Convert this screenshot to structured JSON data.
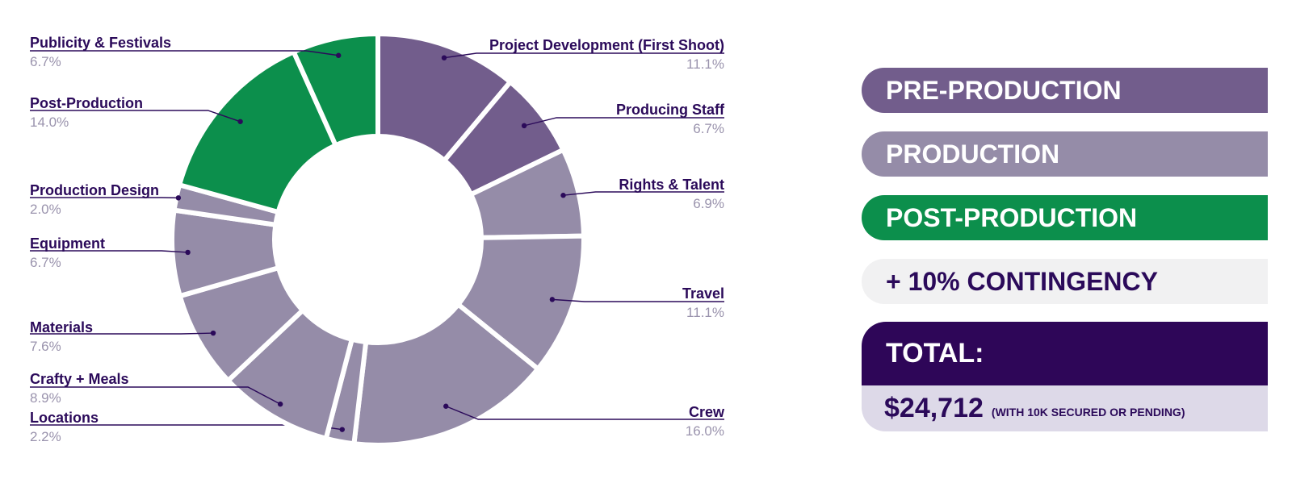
{
  "chart_data": {
    "type": "pie",
    "donut": true,
    "slices": [
      {
        "label": "Project Development (First Shoot)",
        "value": 11.1,
        "pct": "11.1%",
        "phase": "pre",
        "side": "right"
      },
      {
        "label": "Producing Staff",
        "value": 6.7,
        "pct": "6.7%",
        "phase": "pre",
        "side": "right"
      },
      {
        "label": "Rights & Talent",
        "value": 6.9,
        "pct": "6.9%",
        "phase": "prod",
        "side": "right"
      },
      {
        "label": "Travel",
        "value": 11.1,
        "pct": "11.1%",
        "phase": "prod",
        "side": "right"
      },
      {
        "label": "Crew",
        "value": 16.0,
        "pct": "16.0%",
        "phase": "prod",
        "side": "right"
      },
      {
        "label": "Locations",
        "value": 2.2,
        "pct": "2.2%",
        "phase": "prod",
        "side": "left"
      },
      {
        "label": "Crafty + Meals",
        "value": 8.9,
        "pct": "8.9%",
        "phase": "prod",
        "side": "left"
      },
      {
        "label": "Materials",
        "value": 7.6,
        "pct": "7.6%",
        "phase": "prod",
        "side": "left"
      },
      {
        "label": "Equipment",
        "value": 6.7,
        "pct": "6.7%",
        "phase": "prod",
        "side": "left"
      },
      {
        "label": "Production Design",
        "value": 2.0,
        "pct": "2.0%",
        "phase": "prod",
        "side": "left"
      },
      {
        "label": "Post-Production",
        "value": 14.0,
        "pct": "14.0%",
        "phase": "post",
        "side": "left"
      },
      {
        "label": "Publicity & Festivals",
        "value": 6.7,
        "pct": "6.7%",
        "phase": "post",
        "side": "left"
      }
    ],
    "colors": {
      "pre": "#725d8c",
      "prod": "#958ca8",
      "post": "#0c8f4c",
      "label": "#2b0a5a",
      "pct": "#9a93ad"
    }
  },
  "legend": {
    "pre": "PRE-PRODUCTION",
    "prod": "PRODUCTION",
    "post": "POST-PRODUCTION",
    "contingency": "+ 10% CONTINGENCY"
  },
  "total": {
    "label": "TOTAL:",
    "amount": "$24,712",
    "note": "(WITH 10K SECURED OR PENDING)"
  }
}
